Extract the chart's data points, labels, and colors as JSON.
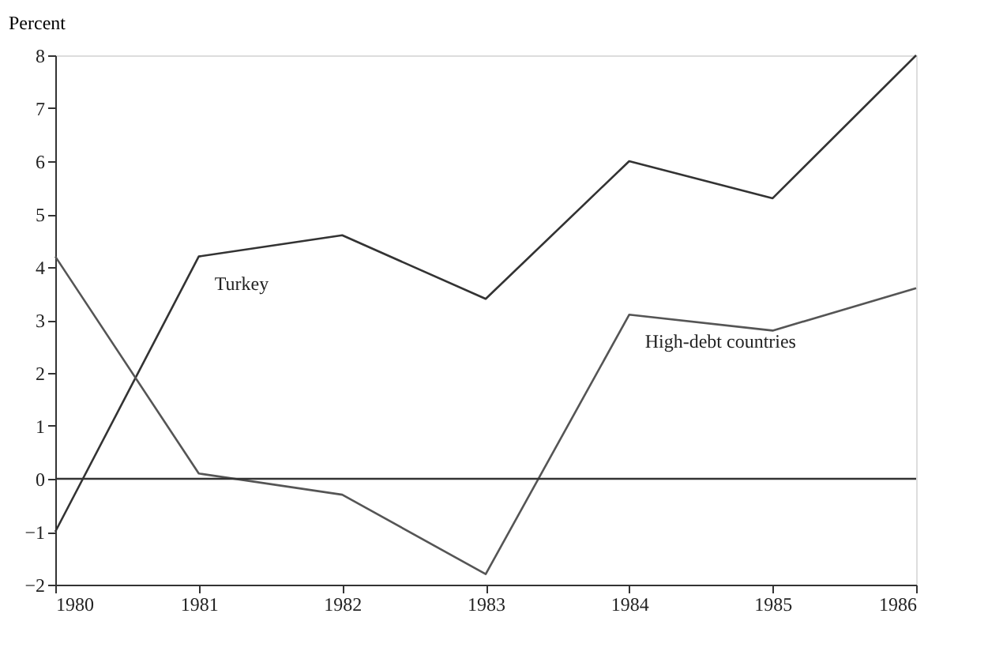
{
  "chart_data": {
    "type": "line",
    "ylabel": "Percent",
    "x": [
      1980,
      1981,
      1982,
      1983,
      1984,
      1985,
      1986
    ],
    "series": [
      {
        "name": "Turkey",
        "color": "#333333",
        "values": [
          -1.0,
          4.2,
          4.6,
          3.4,
          6.0,
          5.3,
          8.0
        ]
      },
      {
        "name": "High-debt countries",
        "color": "#555555",
        "values": [
          4.2,
          0.1,
          -0.3,
          -1.8,
          3.1,
          2.8,
          3.6
        ]
      }
    ],
    "xlim": [
      1980,
      1986
    ],
    "xticks": [
      1980,
      1981,
      1982,
      1983,
      1984,
      1985,
      1986
    ],
    "ylim": [
      -2,
      8
    ],
    "yticks": [
      -2,
      -1,
      0,
      1,
      2,
      3,
      4,
      5,
      6,
      7,
      8
    ],
    "ref_lines": [
      {
        "axis": "y",
        "value": 0,
        "color": "#333333"
      }
    ],
    "grid": false,
    "marker": "none",
    "line_style": "solid"
  }
}
